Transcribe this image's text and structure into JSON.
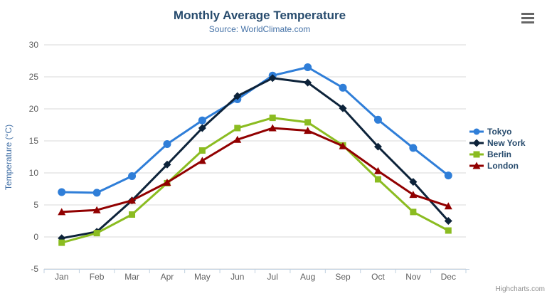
{
  "chart_data": {
    "type": "line",
    "title": "Monthly Average Temperature",
    "subtitle": "Source: WorldClimate.com",
    "categories": [
      "Jan",
      "Feb",
      "Mar",
      "Apr",
      "May",
      "Jun",
      "Jul",
      "Aug",
      "Sep",
      "Oct",
      "Nov",
      "Dec"
    ],
    "xlabel": "",
    "ylabel": "Temperature (°C)",
    "ylim": [
      -5,
      30
    ],
    "ytick_step": 5,
    "yticks": [
      -5,
      0,
      5,
      10,
      15,
      20,
      25,
      30
    ],
    "grid": true,
    "legend_position": "right",
    "series": [
      {
        "name": "Tokyo",
        "color": "#2f7ed8",
        "marker": "circle",
        "values": [
          7.0,
          6.9,
          9.5,
          14.5,
          18.2,
          21.5,
          25.2,
          26.5,
          23.3,
          18.3,
          13.9,
          9.6
        ]
      },
      {
        "name": "New York",
        "color": "#0d233a",
        "marker": "diamond",
        "values": [
          -0.2,
          0.8,
          5.7,
          11.3,
          17.0,
          22.0,
          24.8,
          24.1,
          20.1,
          14.1,
          8.6,
          2.5
        ]
      },
      {
        "name": "Berlin",
        "color": "#8bbc21",
        "marker": "square",
        "values": [
          -0.9,
          0.6,
          3.5,
          8.4,
          13.5,
          17.0,
          18.6,
          17.9,
          14.3,
          9.0,
          3.9,
          1.0
        ]
      },
      {
        "name": "London",
        "color": "#910000",
        "marker": "triangle",
        "values": [
          3.9,
          4.2,
          5.7,
          8.5,
          11.9,
          15.2,
          17.0,
          16.6,
          14.2,
          10.3,
          6.6,
          4.8
        ]
      }
    ]
  },
  "theme": {
    "title_color": "#274b6d",
    "subtitle_color": "#4572a7",
    "axis_title_color": "#4572a7",
    "axis_label_color": "#606060",
    "grid_color": "#d8d8d8",
    "axis_line_color": "#c0d0e0",
    "legend_text_color": "#274b6d",
    "credit_color": "#909090",
    "menu_icon_color": "#666666",
    "background": "#ffffff"
  },
  "export_menu": {
    "icon": "hamburger-icon"
  },
  "credit": {
    "label": "Highcharts.com"
  }
}
